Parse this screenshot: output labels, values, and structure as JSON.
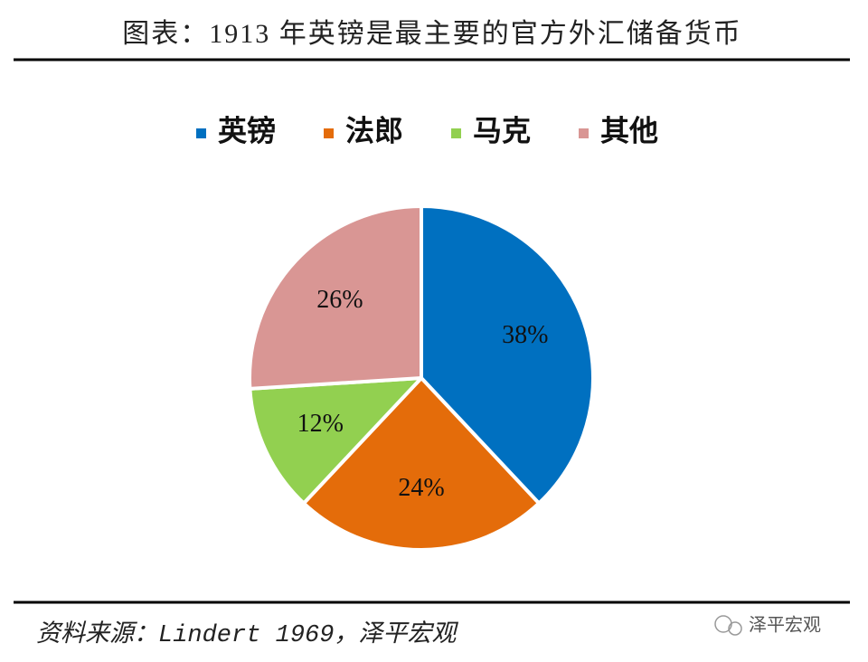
{
  "chart_data": {
    "type": "pie",
    "title": "图表：1913 年英镑是最主要的官方外汇储备货币",
    "categories": [
      "英镑",
      "法郎",
      "马克",
      "其他"
    ],
    "values": [
      38,
      24,
      12,
      26
    ],
    "value_labels": [
      "38%",
      "24%",
      "12%",
      "26%"
    ],
    "colors": [
      "#0070c0",
      "#e46c0a",
      "#92d050",
      "#d99694"
    ],
    "legend": "top",
    "source": "资料来源：Lindert 1969，泽平宏观",
    "watermark": "泽平宏观"
  }
}
